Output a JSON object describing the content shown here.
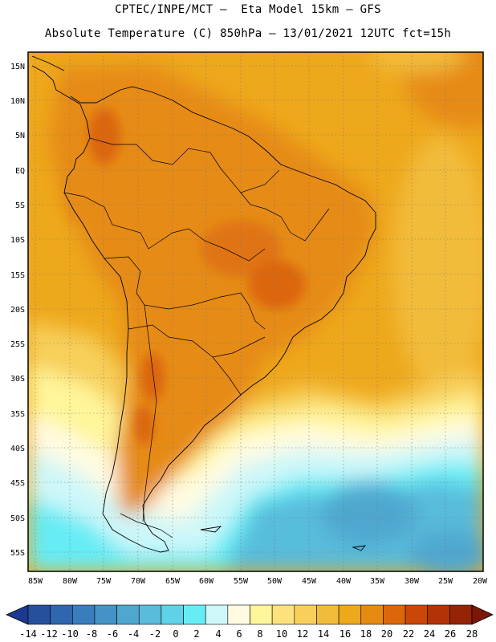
{
  "header": {
    "line1": "CPTEC/INPE/MCT –  Eta Model 15km – GFS",
    "line2": "Absolute Temperature (C) 850hPa – 13/01/2021 12UTC fct=15h"
  },
  "lat_ticks": [
    "15N",
    "10N",
    "5N",
    "EQ",
    "5S",
    "10S",
    "15S",
    "20S",
    "25S",
    "30S",
    "35S",
    "40S",
    "45S",
    "50S",
    "55S"
  ],
  "lon_ticks": [
    "85W",
    "80W",
    "75W",
    "70W",
    "65W",
    "60W",
    "55W",
    "50W",
    "45W",
    "40W",
    "35W",
    "30W",
    "25W",
    "20W"
  ],
  "colorbar": {
    "labels": [
      "-14",
      "-12",
      "-10",
      "-8",
      "-6",
      "-4",
      "-2",
      "0",
      "2",
      "4",
      "6",
      "8",
      "10",
      "12",
      "14",
      "16",
      "18",
      "20",
      "22",
      "24",
      "26",
      "28"
    ],
    "colors": [
      "#1b3a8f",
      "#24509e",
      "#2f66ad",
      "#3a7dbc",
      "#4592c6",
      "#4fa7d0",
      "#59bcdb",
      "#5fd2e8",
      "#66ecf5",
      "#cdf7f9",
      "#fffbe2",
      "#fff59a",
      "#fbe27c",
      "#f7cf5a",
      "#f2bc3b",
      "#eea81c",
      "#e68b12",
      "#dc660c",
      "#cb4707",
      "#b33306",
      "#952306",
      "#7b1708"
    ]
  }
}
